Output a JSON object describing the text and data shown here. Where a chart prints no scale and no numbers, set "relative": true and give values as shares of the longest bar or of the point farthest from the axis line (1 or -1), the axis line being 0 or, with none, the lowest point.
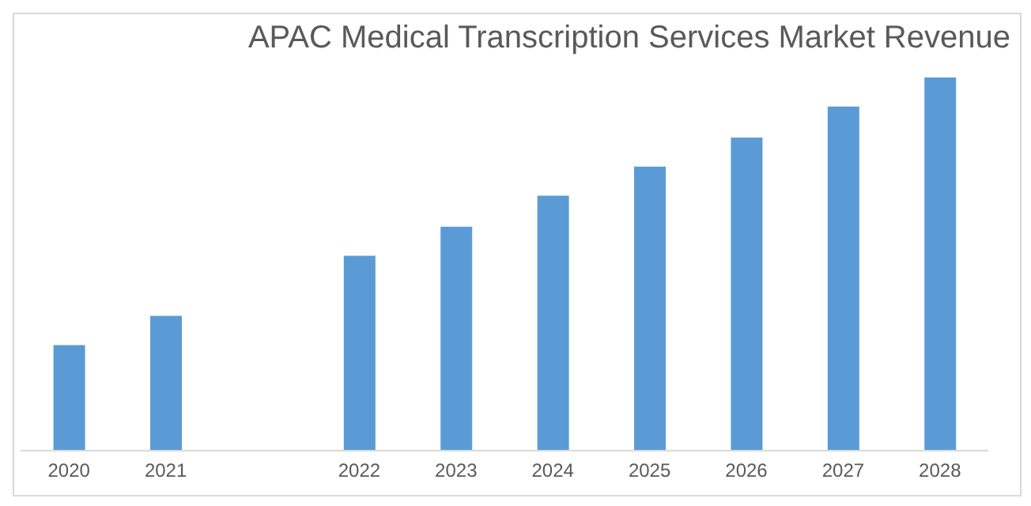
{
  "chart_data": {
    "type": "bar",
    "title": "APAC Medical Transcription Services Market Revenue",
    "relative": true,
    "categories": [
      "2020",
      "2021",
      null,
      "2022",
      "2023",
      "2024",
      "2025",
      "2026",
      "2027",
      "2028"
    ],
    "values": [
      0.283,
      0.361,
      null,
      0.522,
      0.6,
      0.683,
      0.761,
      0.839,
      0.922,
      1
    ],
    "color": "#5b9bd5",
    "grid": false,
    "legend": false
  }
}
